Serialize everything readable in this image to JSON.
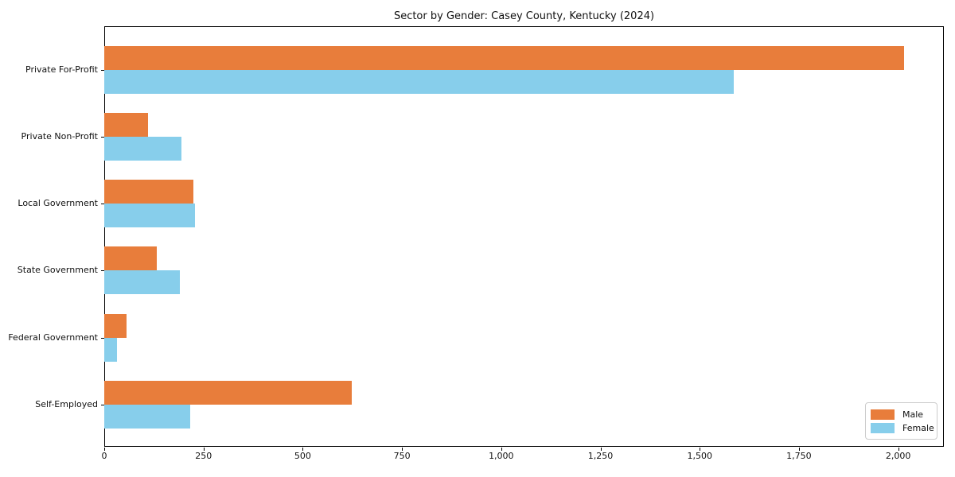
{
  "chart_data": {
    "type": "bar",
    "orientation": "horizontal",
    "title": "Sector by Gender: Casey County, Kentucky (2024)",
    "categories": [
      "Private For-Profit",
      "Private Non-Profit",
      "Local Government",
      "State Government",
      "Federal Government",
      "Self-Employed"
    ],
    "series": [
      {
        "name": "Male",
        "color": "#e87d3b",
        "values": [
          2014,
          111,
          224,
          133,
          56,
          623
        ]
      },
      {
        "name": "Female",
        "color": "#87ceeb",
        "values": [
          1585,
          195,
          229,
          190,
          32,
          216
        ]
      }
    ],
    "xlabel": "",
    "ylabel": "",
    "xlim": [
      0,
      2115
    ],
    "x_ticks": [
      0,
      250,
      500,
      750,
      1000,
      1250,
      1500,
      1750,
      2000
    ],
    "x_tick_labels": [
      "0",
      "250",
      "500",
      "750",
      "1,000",
      "1,250",
      "1,500",
      "1,750",
      "2,000"
    ],
    "grid": false,
    "legend": {
      "position": "lower-right",
      "entries": [
        "Male",
        "Female"
      ]
    },
    "colors": {
      "male": "#e87d3b",
      "female": "#87ceeb",
      "spine": "#000000",
      "background": "#ffffff"
    }
  }
}
